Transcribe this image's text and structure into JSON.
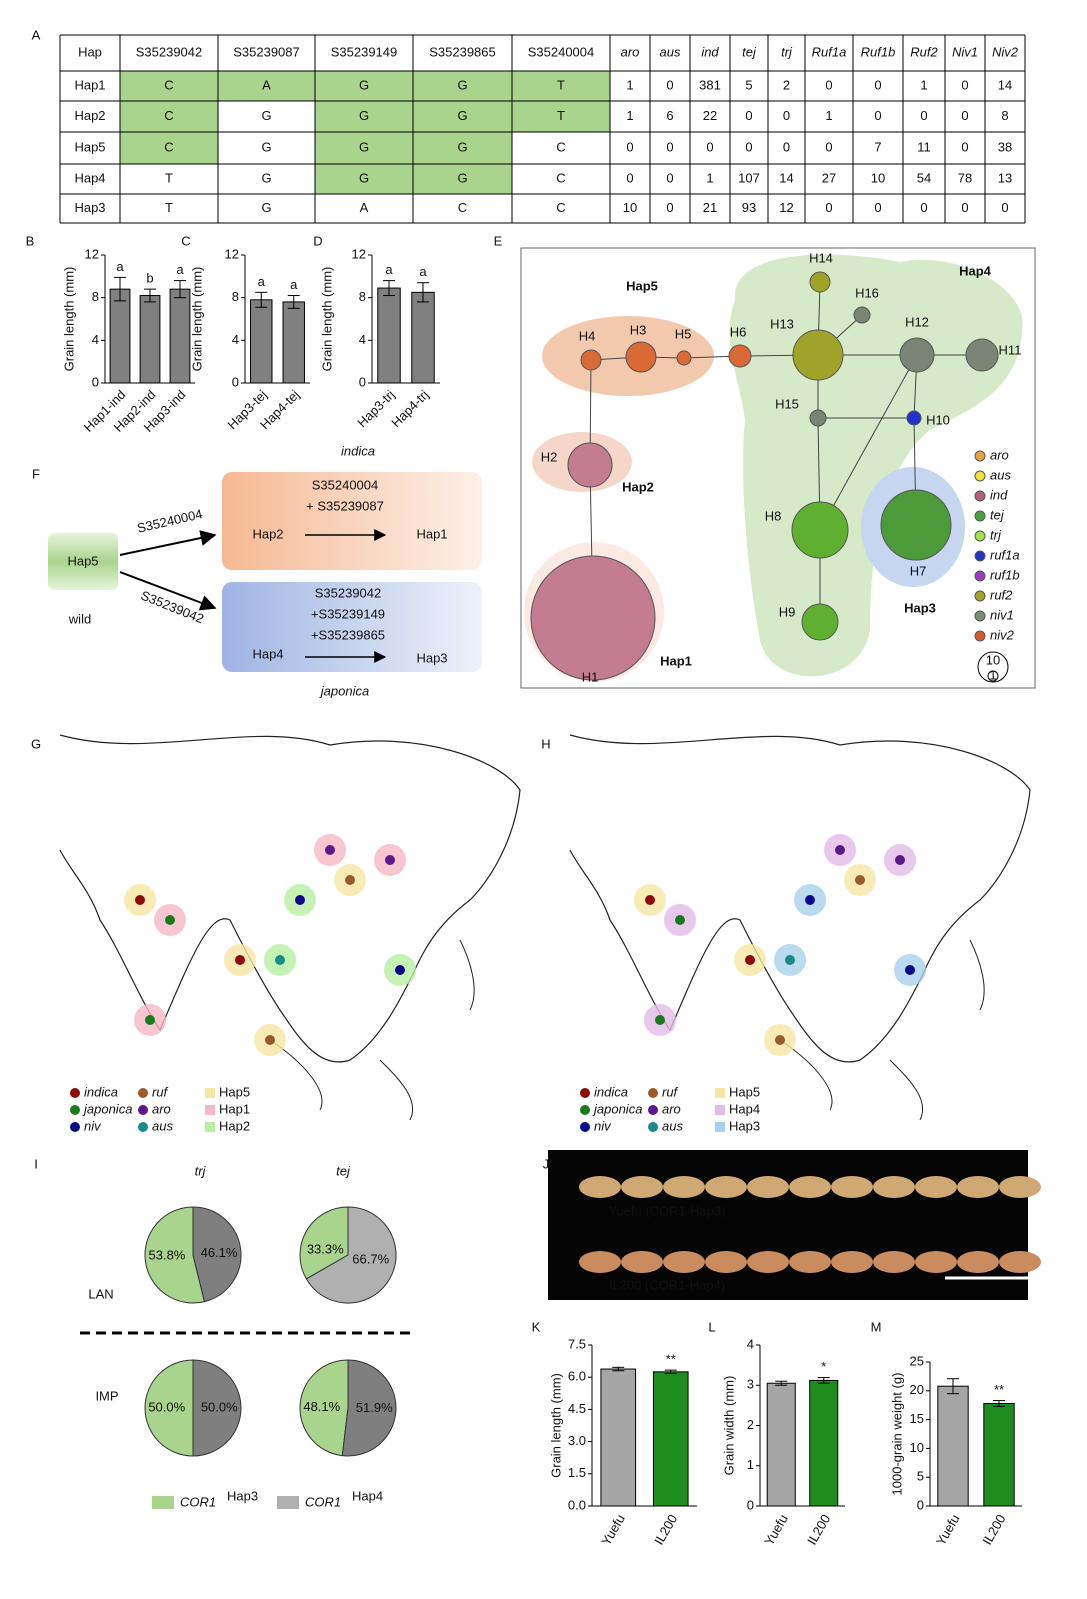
{
  "panels": [
    "A",
    "B",
    "C",
    "D",
    "E",
    "F",
    "G",
    "H",
    "I",
    "J",
    "K",
    "L",
    "M"
  ],
  "table": {
    "highlight_color": "#a9d48d",
    "emphasis_color": "#c00000",
    "emphasis_columns": [
      3,
      4
    ],
    "header": [
      "Hap",
      "S35239042",
      "S35239087",
      "S35239149",
      "S35239865",
      "S35240004",
      "aro",
      "aus",
      "ind",
      "tej",
      "trj",
      "Ruf1a",
      "Ruf1b",
      "Ruf2",
      "Niv1",
      "Niv2"
    ],
    "rows": [
      {
        "cells": [
          "Hap1",
          "C",
          "A",
          "G",
          "G",
          "T",
          1,
          0,
          381,
          5,
          2,
          0,
          0,
          1,
          0,
          14
        ],
        "highlight": [
          1,
          2,
          3,
          4,
          5
        ]
      },
      {
        "cells": [
          "Hap2",
          "C",
          "G",
          "G",
          "G",
          "T",
          1,
          6,
          22,
          0,
          0,
          1,
          0,
          0,
          0,
          8
        ],
        "highlight": [
          1,
          3,
          4,
          5
        ]
      },
      {
        "cells": [
          "Hap5",
          "C",
          "G",
          "G",
          "G",
          "C",
          0,
          0,
          0,
          0,
          0,
          0,
          7,
          11,
          0,
          38
        ],
        "highlight": [
          1,
          3,
          4
        ]
      },
      {
        "cells": [
          "Hap4",
          "T",
          "G",
          "G",
          "G",
          "C",
          0,
          0,
          1,
          107,
          14,
          27,
          10,
          54,
          78,
          13
        ],
        "highlight": [
          3,
          4
        ]
      },
      {
        "cells": [
          "Hap3",
          "T",
          "G",
          "A",
          "C",
          "C",
          10,
          0,
          21,
          93,
          12,
          0,
          0,
          0,
          0,
          0
        ],
        "highlight": []
      }
    ]
  },
  "chart_data": [
    {
      "type": "bar",
      "ylabel": "Grain length (mm)",
      "categories": [
        "Hap1-ind",
        "Hap2-ind",
        "Hap3-ind"
      ],
      "values": [
        8.8,
        8.2,
        8.8
      ],
      "errors": [
        1.1,
        0.6,
        0.8
      ],
      "letters": [
        "a",
        "b",
        "a"
      ],
      "color": "#808080",
      "ylim": [
        0,
        12
      ],
      "yticks": [
        0,
        4,
        8,
        12
      ]
    },
    {
      "type": "bar",
      "ylabel": "Grain length (mm)",
      "categories": [
        "Hap3-tej",
        "Hap4-tej"
      ],
      "values": [
        7.8,
        7.6
      ],
      "errors": [
        0.7,
        0.6
      ],
      "letters": [
        "a",
        "a"
      ],
      "color": "#808080",
      "ylim": [
        0,
        12
      ],
      "yticks": [
        0,
        4,
        8,
        12
      ]
    },
    {
      "type": "bar",
      "ylabel": "Grain length (mm)",
      "categories": [
        "Hap3-trj",
        "Hap4-trj"
      ],
      "values": [
        8.9,
        8.5
      ],
      "errors": [
        0.7,
        0.9
      ],
      "letters": [
        "a",
        "a"
      ],
      "color": "#808080",
      "ylim": [
        0,
        12
      ],
      "yticks": [
        0,
        4,
        8,
        12
      ]
    },
    {
      "type": "bar",
      "ylabel": "Grain length (mm)",
      "categories": [
        "Yuefu",
        "IL200"
      ],
      "values": [
        6.38,
        6.25
      ],
      "errors": [
        0.08,
        0.08
      ],
      "letters": [
        null,
        "**"
      ],
      "colors": [
        "#a6a6a6",
        "#1e8c1e"
      ],
      "ylim": [
        0,
        7.5
      ],
      "yticks": [
        {
          "value": 0,
          "label": "0.0"
        },
        1.5,
        {
          "value": 3,
          "label": "3.0"
        },
        4.5,
        {
          "value": 6,
          "label": "6.0"
        },
        7.5
      ]
    },
    {
      "type": "bar",
      "ylabel": "Grain width (mm)",
      "categories": [
        "Yuefu",
        "IL200"
      ],
      "values": [
        3.05,
        3.12
      ],
      "errors": [
        0.05,
        0.07
      ],
      "letters": [
        null,
        "*"
      ],
      "colors": [
        "#a6a6a6",
        "#1e8c1e"
      ],
      "ylim": [
        0,
        4
      ],
      "yticks": [
        0,
        1,
        2,
        3,
        4
      ]
    },
    {
      "type": "bar",
      "ylabel": "1000-grain weight (g)",
      "categories": [
        "Yuefu",
        "IL200"
      ],
      "values": [
        20.8,
        17.8
      ],
      "errors": [
        1.3,
        0.5
      ],
      "letters": [
        null,
        "**"
      ],
      "colors": [
        "#a6a6a6",
        "#1e8c1e"
      ],
      "ylim": [
        0,
        25
      ],
      "yticks": [
        0,
        5,
        10,
        15,
        20,
        25
      ]
    },
    {
      "type": "pie",
      "values": [
        53.8,
        46.1
      ],
      "value_labels": [
        "53.8%",
        "46.1%"
      ],
      "colors": [
        "#a9d48d",
        "#7f7f7f"
      ]
    },
    {
      "type": "pie",
      "values": [
        33.3,
        66.7
      ],
      "value_labels": [
        "33.3%",
        "66.7%"
      ],
      "colors": [
        "#a9d48d",
        "#b0b0b0"
      ]
    },
    {
      "type": "pie",
      "values": [
        50.0,
        50.0
      ],
      "value_labels": [
        "50.0%",
        "50.0%"
      ],
      "colors": [
        "#a9d48d",
        "#7f7f7f"
      ]
    },
    {
      "type": "pie",
      "values": [
        48.1,
        51.9
      ],
      "value_labels": [
        "48.1%",
        "51.9%"
      ],
      "colors": [
        "#a9d48d",
        "#7f7f7f"
      ]
    }
  ],
  "bcd_caption": "indica",
  "pie_grid": {
    "columns": [
      "trj",
      "tej"
    ],
    "rows": [
      "LAN",
      "IMP"
    ],
    "legend": [
      {
        "name": "COR1",
        "sup": "Hap3",
        "color": "#a9d48d"
      },
      {
        "name": "COR1",
        "sup": "Hap4",
        "color": "#b0b0b0"
      }
    ]
  },
  "network": {
    "groups": [
      {
        "label": "Hap5",
        "color": "#f3c9ad"
      },
      {
        "label": "Hap2",
        "color": "#f6d6c8"
      },
      {
        "label": "Hap1",
        "color": "#fbe9e3"
      },
      {
        "label": "Hap4",
        "color": "#d6e9c9"
      },
      {
        "label": "Hap3",
        "color": "#c6d5f0"
      }
    ],
    "nodes": [
      {
        "label": "H1",
        "color": "#c47d90"
      },
      {
        "label": "H2",
        "color": "#c47d90"
      },
      {
        "label": "H3",
        "color": "#d96a36"
      },
      {
        "label": "H4",
        "color": "#d96a36"
      },
      {
        "label": "H5",
        "color": "#d96a36"
      },
      {
        "label": "H6",
        "color": "#d96a36"
      },
      {
        "label": "H7",
        "color": "#4d9a3a"
      },
      {
        "label": "H8",
        "color": "#5fb030"
      },
      {
        "label": "H9",
        "color": "#5fb030"
      },
      {
        "label": "H10",
        "color": "#2233cc"
      },
      {
        "label": "H11",
        "color": "#7a8575"
      },
      {
        "label": "H12",
        "color": "#7a8575"
      },
      {
        "label": "H13",
        "color": "#a0a32a"
      },
      {
        "label": "H14",
        "color": "#a0a32a"
      },
      {
        "label": "H15",
        "color": "#7a8575"
      },
      {
        "label": "H16",
        "color": "#7a8575"
      }
    ],
    "legend": [
      {
        "name": "aro",
        "color": "#e8a33c"
      },
      {
        "name": "aus",
        "color": "#f2e53a"
      },
      {
        "name": "ind",
        "color": "#b7607a"
      },
      {
        "name": "tej",
        "color": "#4aa33c"
      },
      {
        "name": "trj",
        "color": "#a6e04a"
      },
      {
        "name": "ruf1a",
        "color": "#2432c8"
      },
      {
        "name": "ruf1b",
        "color": "#9b3cc8"
      },
      {
        "name": "ruf2",
        "color": "#a8a22a"
      },
      {
        "name": "niv1",
        "color": "#7e8a7a"
      },
      {
        "name": "niv2",
        "color": "#d65a2a"
      }
    ],
    "scale": [
      "10",
      "1"
    ]
  },
  "diagram": {
    "wild": "Hap5",
    "wild_label": "wild",
    "arrow_top": "S35240004",
    "arrow_bottom": "S35239042",
    "box_top": {
      "lines": [
        "S35240004",
        "+ S35239087"
      ],
      "from": "Hap2",
      "to": "Hap1"
    },
    "box_bottom": {
      "lines": [
        "S35239042",
        "+S35239149",
        "+S35239865"
      ],
      "from": "Hap4",
      "to": "Hap3"
    },
    "caption": "japonica"
  },
  "maps": [
    {
      "points": [
        {
          "name": "indica",
          "color": "#8b0a0a"
        },
        {
          "name": "japonica",
          "color": "#1a7a1a"
        },
        {
          "name": "niv",
          "color": "#0a0a8b"
        },
        {
          "name": "ruf",
          "color": "#9a5a2a"
        },
        {
          "name": "aro",
          "color": "#5a1a8a"
        },
        {
          "name": "aus",
          "color": "#1a8a8a"
        }
      ],
      "regions": [
        {
          "name": "Hap5",
          "color": "#f6e6a4"
        },
        {
          "name": "Hap1",
          "color": "#f6b8c6"
        },
        {
          "name": "Hap2",
          "color": "#b8f0a2"
        }
      ]
    },
    {
      "points": [
        {
          "name": "indica",
          "color": "#8b0a0a"
        },
        {
          "name": "japonica",
          "color": "#1a7a1a"
        },
        {
          "name": "niv",
          "color": "#0a0a8b"
        },
        {
          "name": "ruf",
          "color": "#9a5a2a"
        },
        {
          "name": "aro",
          "color": "#5a1a8a"
        },
        {
          "name": "aus",
          "color": "#1a8a8a"
        }
      ],
      "regions": [
        {
          "name": "Hap5",
          "color": "#f6e6a4"
        },
        {
          "name": "Hap4",
          "color": "#e2bce8"
        },
        {
          "name": "Hap3",
          "color": "#a9d1ec"
        }
      ]
    }
  ],
  "photo": {
    "top": "Yuefu (COR1-Hap3)",
    "bottom": "IL200 (COR1-Hap4)"
  }
}
